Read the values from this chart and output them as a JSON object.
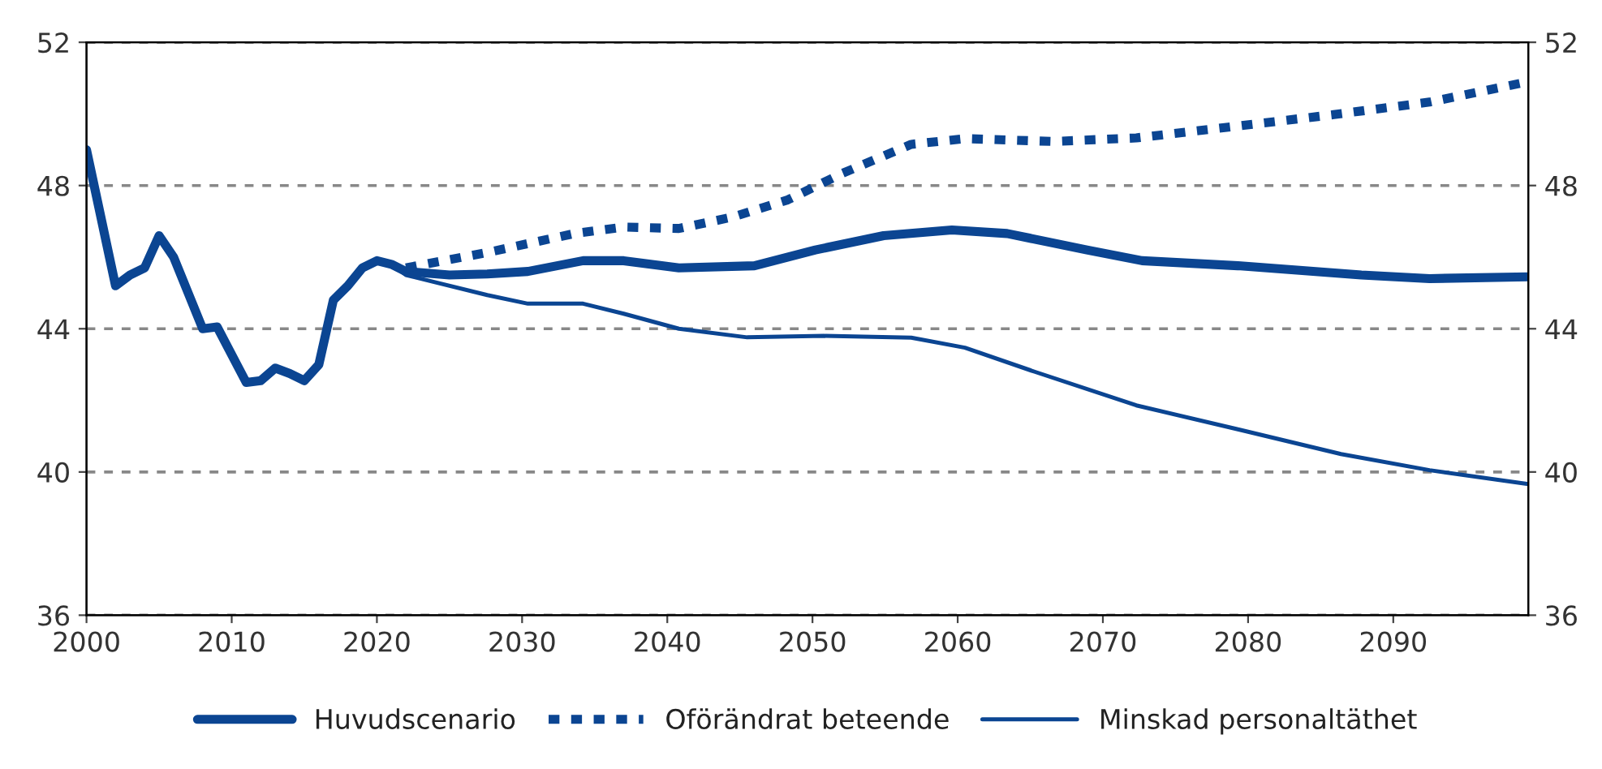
{
  "chart_data": {
    "type": "line",
    "xlim": [
      2000,
      2099.3
    ],
    "xticks": [
      2000,
      2010,
      2020,
      2030,
      2040,
      2050,
      2060,
      2070,
      2080,
      2090
    ],
    "ylim": [
      36,
      52
    ],
    "yticks": [
      36,
      40,
      44,
      48,
      52
    ],
    "y2lim": [
      36,
      52
    ],
    "y2ticks": [
      36,
      40,
      44,
      48,
      52
    ],
    "grid": "y",
    "legend": "bottom",
    "series": [
      {
        "name": "Huvudscenario",
        "color": "#0b4592",
        "line_style": "solid",
        "x": [
          2000,
          2002,
          2003,
          2004,
          2005,
          2006,
          2008,
          2009,
          2011,
          2012,
          2013,
          2014,
          2015,
          2016,
          2017,
          2018,
          2019,
          2020,
          2021,
          2022,
          2025,
          2027.6,
          2030.4,
          2034.2,
          2037,
          2040.8,
          2046,
          2050.2,
          2054.9,
          2059.6,
          2063.4,
          2068.9,
          2072.7,
          2079.3,
          2087.8,
          2092.5,
          2099.3
        ],
        "values": [
          49.0,
          45.2,
          45.5,
          45.7,
          46.6,
          46.0,
          44.0,
          44.05,
          42.5,
          42.55,
          42.9,
          42.75,
          42.55,
          43.0,
          44.8,
          45.2,
          45.7,
          45.9,
          45.8,
          45.6,
          45.5,
          45.53,
          45.6,
          45.9,
          45.9,
          45.7,
          45.76,
          46.2,
          46.6,
          46.76,
          46.66,
          46.2,
          45.9,
          45.76,
          45.5,
          45.4,
          45.45
        ]
      },
      {
        "name": "Oförändrat beteende",
        "color": "#0b4592",
        "line_style": "dotted",
        "x": [
          2022,
          2027.6,
          2033.6,
          2037,
          2040.8,
          2044.5,
          2048.3,
          2052,
          2056.8,
          2060.5,
          2066.6,
          2072.3,
          2078.4,
          2085.9,
          2092.5,
          2099.3
        ],
        "values": [
          45.7,
          46.13,
          46.66,
          46.84,
          46.8,
          47.12,
          47.6,
          48.33,
          49.15,
          49.31,
          49.23,
          49.33,
          49.62,
          49.98,
          50.33,
          50.9
        ]
      },
      {
        "name": "Minskad personaltäthet",
        "color": "#0b4592",
        "line_style": "solid",
        "x": [
          2021,
          2022,
          2027.6,
          2030.4,
          2034.2,
          2037,
          2040.8,
          2045.5,
          2050.8,
          2056.8,
          2060.5,
          2065.3,
          2072.3,
          2079.3,
          2086.4,
          2092.5,
          2099.3
        ],
        "values": [
          45.8,
          45.5,
          44.94,
          44.7,
          44.7,
          44.42,
          44.0,
          43.76,
          43.8,
          43.75,
          43.47,
          42.8,
          41.86,
          41.19,
          40.5,
          40.05,
          39.66
        ]
      }
    ]
  }
}
